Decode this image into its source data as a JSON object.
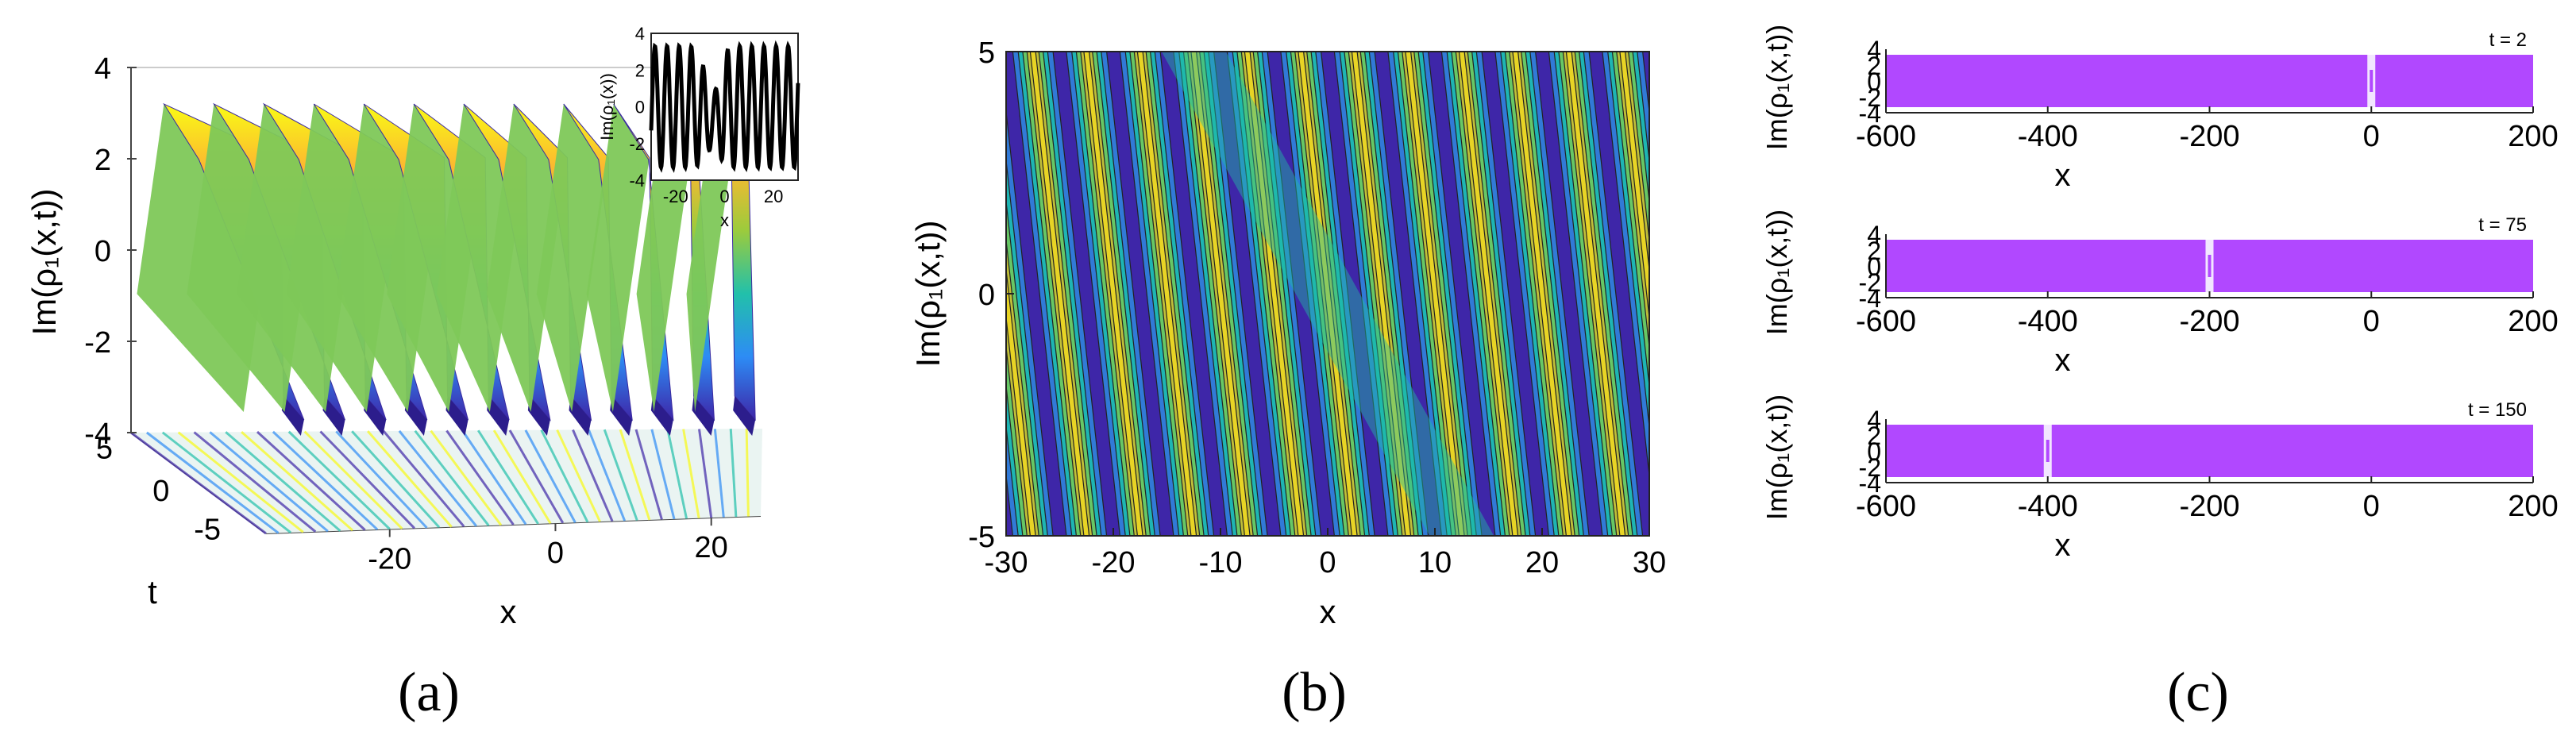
{
  "panels": {
    "a": {
      "label": "(a)",
      "chart_data": {
        "type": "surface",
        "xlabel": "x",
        "ylabel": "t",
        "zlabel": "Im(ρ₁(x,t))",
        "xlim": [
          -30,
          30
        ],
        "ylim": [
          -5,
          5
        ],
        "zlim": [
          -4,
          4
        ],
        "x_ticks": [
          "-20",
          "0",
          "20"
        ],
        "y_ticks": [
          "5",
          "0",
          "-5"
        ],
        "z_ticks": [
          "4",
          "2",
          "0",
          "-2",
          "-4"
        ],
        "crests": 12,
        "amplitude": 3.2,
        "colormap": [
          "#3e26a8",
          "#2d8cf5",
          "#22c0aa",
          "#9ccb3c",
          "#fcb830",
          "#f9fb15"
        ],
        "inset": {
          "type": "line",
          "xlabel": "x",
          "ylabel": "Im(ρ₁(x))",
          "xlim": [
            -30,
            30
          ],
          "ylim": [
            -4,
            4
          ],
          "x_ticks": [
            "-20",
            "0",
            "20"
          ],
          "y_ticks": [
            "4",
            "2",
            "0",
            "-2",
            "-4"
          ],
          "amplitude": 3.3,
          "wavenumber": 1.27,
          "dip_center": -5,
          "dip_width": 4
        }
      }
    },
    "b": {
      "label": "(b)",
      "chart_data": {
        "type": "contour",
        "xlabel": "x",
        "ylabel": "Im(ρ₁(x,t))",
        "xlim": [
          -30,
          30
        ],
        "ylim": [
          -5,
          5
        ],
        "x_ticks": [
          "-30",
          "-20",
          "-10",
          "0",
          "10",
          "20",
          "30"
        ],
        "y_ticks": [
          "5",
          "0",
          "-5"
        ],
        "wavelength": 5,
        "stripe_slope": -0.5,
        "defect_slope": -2.5,
        "colormap": [
          "#3e26a8",
          "#4354d9",
          "#1f9fd4",
          "#1ebea5",
          "#83cb4c",
          "#dcba2f",
          "#f9fb15"
        ]
      }
    },
    "c": {
      "label": "(c)",
      "rows": [
        {
          "time_label": "t = 2",
          "defect_x": 0
        },
        {
          "time_label": "t = 75",
          "defect_x": -200
        },
        {
          "time_label": "t = 150",
          "defect_x": -400
        }
      ],
      "chart_data": {
        "type": "line",
        "xlabel": "x",
        "ylabel": "Im(ρ₁(x,t))",
        "xlim": [
          -600,
          200
        ],
        "ylim": [
          -4,
          4
        ],
        "x_ticks": [
          "-600",
          "-400",
          "-200",
          "0",
          "200"
        ],
        "y_ticks": [
          "4",
          "2",
          "0",
          "-2",
          "-4"
        ],
        "amplitude": 3.3,
        "color": "#b148ff"
      }
    }
  }
}
